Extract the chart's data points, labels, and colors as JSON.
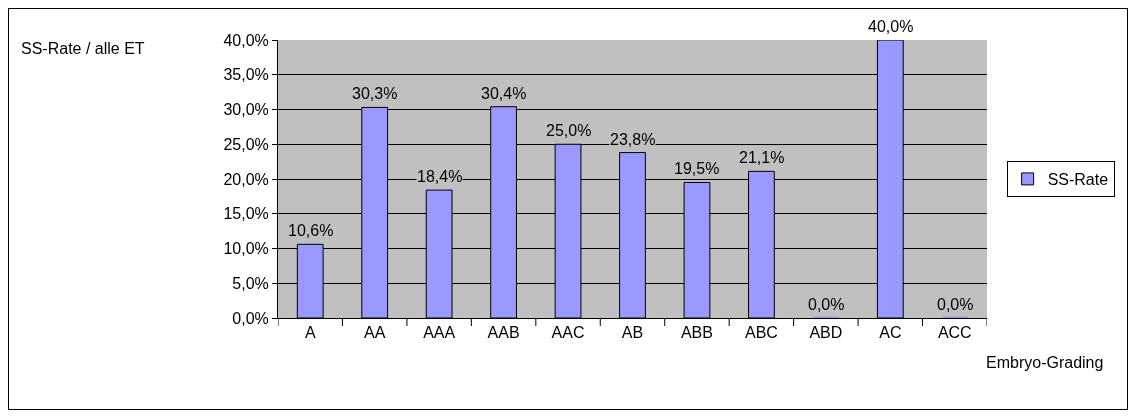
{
  "chart_data": {
    "type": "bar",
    "ylabel": "SS-Rate / alle ET",
    "xlabel": "Embryo-Grading",
    "categories": [
      "A",
      "AA",
      "AAA",
      "AAB",
      "AAC",
      "AB",
      "ABB",
      "ABC",
      "ABD",
      "AC",
      "ACC"
    ],
    "series": [
      {
        "name": "SS-Rate",
        "color": "#9999ff",
        "values": [
          10.6,
          30.3,
          18.4,
          30.4,
          25.0,
          23.8,
          19.5,
          21.1,
          0.0,
          40.0,
          0.0
        ],
        "value_labels": [
          "10,6%",
          "30,3%",
          "18,4%",
          "30,4%",
          "25,0%",
          "23,8%",
          "19,5%",
          "21,1%",
          "0,0%",
          "40,0%",
          "0,0%"
        ]
      }
    ],
    "ylim": [
      0,
      40
    ],
    "yticks": [
      {
        "value": 0,
        "label": "0,0%"
      },
      {
        "value": 5,
        "label": "5,0%"
      },
      {
        "value": 10,
        "label": "10,0%"
      },
      {
        "value": 15,
        "label": "15,0%"
      },
      {
        "value": 20,
        "label": "20,0%"
      },
      {
        "value": 25,
        "label": "25,0%"
      },
      {
        "value": 30,
        "label": "30,0%"
      },
      {
        "value": 35,
        "label": "35,0%"
      },
      {
        "value": 40,
        "label": "40,0%"
      }
    ],
    "grid": "y",
    "legend": "right"
  }
}
